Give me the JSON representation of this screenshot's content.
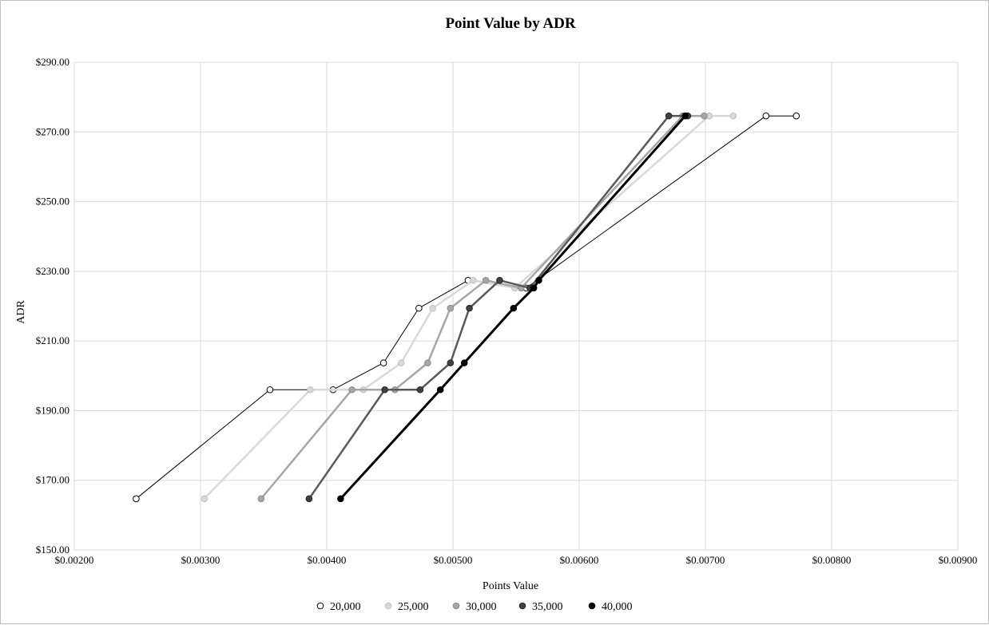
{
  "chart_data": {
    "type": "scatter",
    "title": "Point Value by ADR",
    "xlabel": "Points Value",
    "ylabel": "ADR",
    "xlim": [
      0.002,
      0.009
    ],
    "ylim": [
      150,
      290
    ],
    "x_ticks": [
      0.002,
      0.003,
      0.004,
      0.005,
      0.006,
      0.007,
      0.008,
      0.009
    ],
    "y_ticks": [
      150,
      170,
      190,
      210,
      230,
      250,
      270,
      290
    ],
    "x_tick_labels": [
      "$0.00200",
      "$0.00300",
      "$0.00400",
      "$0.00500",
      "$0.00600",
      "$0.00700",
      "$0.00800",
      "$0.00900"
    ],
    "y_tick_labels": [
      "$150.00",
      "$170.00",
      "$190.00",
      "$210.00",
      "$230.00",
      "$250.00",
      "$270.00",
      "$290.00"
    ],
    "grid": true,
    "legend_position": "bottom",
    "series": [
      {
        "name": "20,000",
        "line_color": "#000000",
        "line_width": 1,
        "marker_fill": "#ffffff",
        "marker_stroke": "#000000",
        "points": [
          [
            0.00249,
            164.7
          ],
          [
            0.00355,
            196.0
          ],
          [
            0.00405,
            196.0
          ],
          [
            0.00445,
            203.7
          ],
          [
            0.00473,
            219.4
          ],
          [
            0.00512,
            227.4
          ],
          [
            0.00558,
            225.2
          ],
          [
            0.00748,
            274.6
          ],
          [
            0.00772,
            274.6
          ]
        ]
      },
      {
        "name": "25,000",
        "line_color": "#d9d9d9",
        "line_width": 2.5,
        "marker_fill": "#d9d9d9",
        "marker_stroke": "#bfbfbf",
        "points": [
          [
            0.00303,
            164.7
          ],
          [
            0.00387,
            196.0
          ],
          [
            0.00429,
            196.0
          ],
          [
            0.00459,
            203.7
          ],
          [
            0.00484,
            219.4
          ],
          [
            0.00516,
            227.4
          ],
          [
            0.00549,
            225.2
          ],
          [
            0.00703,
            274.6
          ],
          [
            0.00722,
            274.6
          ]
        ]
      },
      {
        "name": "30,000",
        "line_color": "#a6a6a6",
        "line_width": 2.5,
        "marker_fill": "#a6a6a6",
        "marker_stroke": "#8c8c8c",
        "points": [
          [
            0.00348,
            164.7
          ],
          [
            0.0042,
            196.0
          ],
          [
            0.00454,
            196.0
          ],
          [
            0.0048,
            203.7
          ],
          [
            0.00498,
            219.4
          ],
          [
            0.00526,
            227.4
          ],
          [
            0.00554,
            225.2
          ],
          [
            0.00682,
            274.6
          ],
          [
            0.00699,
            274.6
          ]
        ]
      },
      {
        "name": "35,000",
        "line_color": "#595959",
        "line_width": 2.5,
        "marker_fill": "#404040",
        "marker_stroke": "#262626",
        "points": [
          [
            0.00386,
            164.7
          ],
          [
            0.00446,
            196.0
          ],
          [
            0.00474,
            196.0
          ],
          [
            0.00498,
            203.7
          ],
          [
            0.00513,
            219.4
          ],
          [
            0.00537,
            227.4
          ],
          [
            0.00561,
            225.2
          ],
          [
            0.00671,
            274.6
          ],
          [
            0.00686,
            274.6
          ]
        ]
      },
      {
        "name": "40,000",
        "line_color": "#000000",
        "line_width": 3,
        "marker_fill": "#000000",
        "marker_stroke": "#000000",
        "points": [
          [
            0.00411,
            164.7
          ],
          [
            0.0049,
            196.0
          ],
          [
            0.00509,
            203.7
          ],
          [
            0.00548,
            219.4
          ],
          [
            0.00564,
            225.2
          ],
          [
            0.00568,
            227.4
          ],
          [
            0.00684,
            274.6
          ]
        ]
      }
    ]
  }
}
